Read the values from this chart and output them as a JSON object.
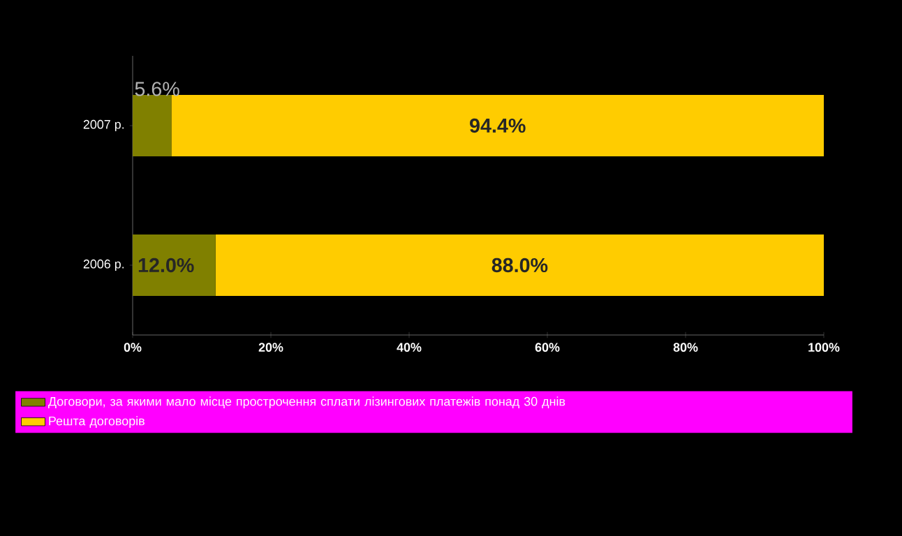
{
  "chart_data": {
    "type": "bar",
    "orientation": "horizontal",
    "stacked": true,
    "categories": [
      "2007 р.",
      "2006 р."
    ],
    "series": [
      {
        "name": "Договори, за якими мало місце прострочення сплати лізингових платежів понад 30 днів",
        "color": "#808000",
        "values": [
          5.6,
          12.0
        ],
        "value_labels": [
          "5.6%",
          "12.0%"
        ]
      },
      {
        "name": "Решта договорів",
        "color": "#ffcc00",
        "values": [
          94.4,
          88.0
        ],
        "value_labels": [
          "94.4%",
          "88.0%"
        ]
      }
    ],
    "xlim": [
      0,
      100
    ],
    "xticks": [
      {
        "value": 0,
        "label": "0%"
      },
      {
        "value": 20,
        "label": "20%"
      },
      {
        "value": 40,
        "label": "40%"
      },
      {
        "value": 60,
        "label": "60%"
      },
      {
        "value": 80,
        "label": "80%"
      },
      {
        "value": 100,
        "label": "100%"
      }
    ],
    "legend": "bottom"
  }
}
